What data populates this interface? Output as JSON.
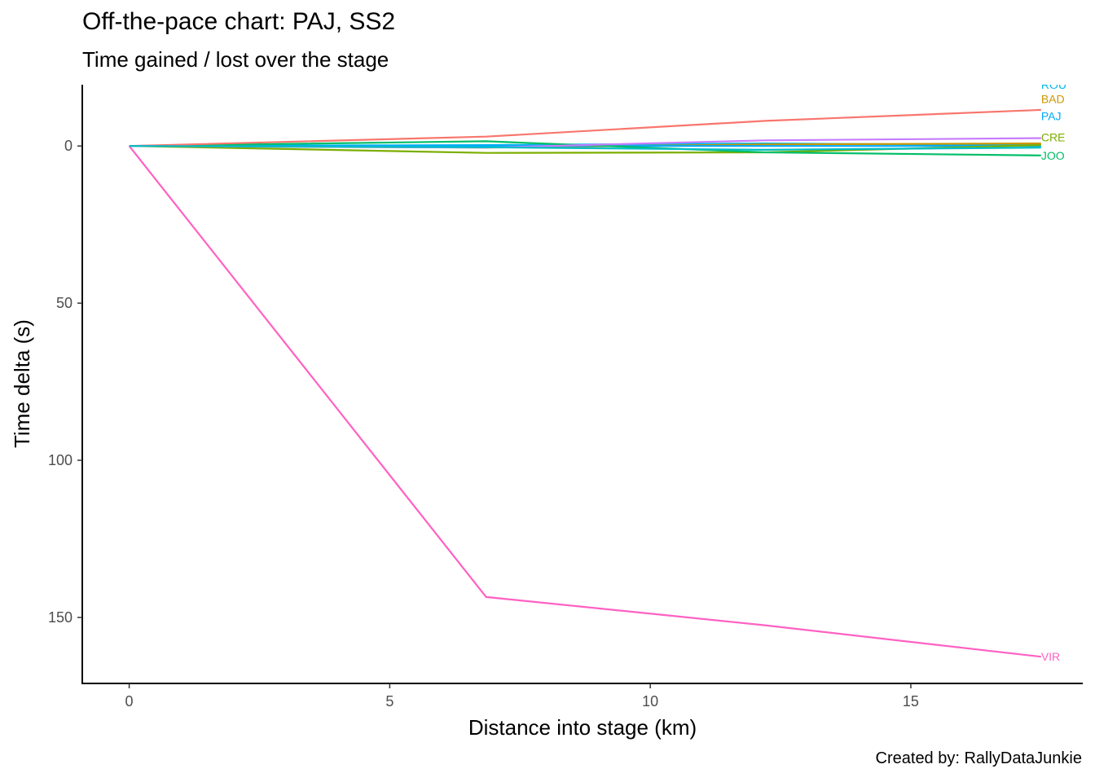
{
  "chart_data": {
    "type": "line",
    "title": "Off-the-pace chart: PAJ, SS2",
    "subtitle": "Time gained / lost over the stage",
    "xlabel": "Distance into stage (km)",
    "ylabel": "Time delta (s)",
    "caption": "Created by: RallyDataJunkie",
    "xlim": [
      -0.9,
      18.3
    ],
    "ylim": [
      -19.5,
      171
    ],
    "y_reversed": true,
    "xticks": [
      0,
      5,
      10,
      15
    ],
    "yticks": [
      0,
      50,
      100,
      150
    ],
    "grid": false,
    "legend": "none",
    "series": [
      {
        "name": "ROU",
        "color": "#00B8E7",
        "x": [
          0,
          6.85,
          12.2,
          17.5
        ],
        "y": [
          0,
          -0.3,
          -0.8,
          -0.3
        ]
      },
      {
        "name": "BAD",
        "color": "#CD9600",
        "x": [
          0,
          6.85,
          12.2,
          17.5
        ],
        "y": [
          0,
          0.5,
          -0.5,
          -0.8
        ]
      },
      {
        "name": "PAJ",
        "color": "#00A9FF",
        "x": [
          0,
          6.85,
          12.2,
          17.5
        ],
        "y": [
          0,
          0,
          0,
          0
        ]
      },
      {
        "name": "CRE",
        "color": "#7CAE00",
        "x": [
          0,
          6.85,
          12.2,
          17.5
        ],
        "y": [
          0,
          2.2,
          2,
          -0.3
        ]
      },
      {
        "name": "JOO",
        "color": "#00BE67",
        "x": [
          0,
          6.85,
          12.2,
          17.5
        ],
        "y": [
          0,
          -1.5,
          2,
          3
        ]
      },
      {
        "name": "VIR",
        "color": "#FF61C3",
        "x": [
          0,
          6.85,
          12.2,
          17.5
        ],
        "y": [
          0,
          143.5,
          152.5,
          162.5
        ]
      },
      {
        "name": "",
        "color": "#F8766D",
        "x": [
          0,
          6.85,
          12.2,
          17.5
        ],
        "y": [
          0,
          -3,
          -8,
          -11.5
        ]
      },
      {
        "name": "",
        "color": "#C77CFF",
        "x": [
          0,
          6.85,
          12.2,
          17.5
        ],
        "y": [
          0,
          0.5,
          -1.8,
          -2.5
        ]
      },
      {
        "name": "",
        "color": "#00BFC4",
        "x": [
          0,
          6.85,
          12.2,
          17.5
        ],
        "y": [
          0,
          0.4,
          1.2,
          0.5
        ]
      }
    ]
  }
}
